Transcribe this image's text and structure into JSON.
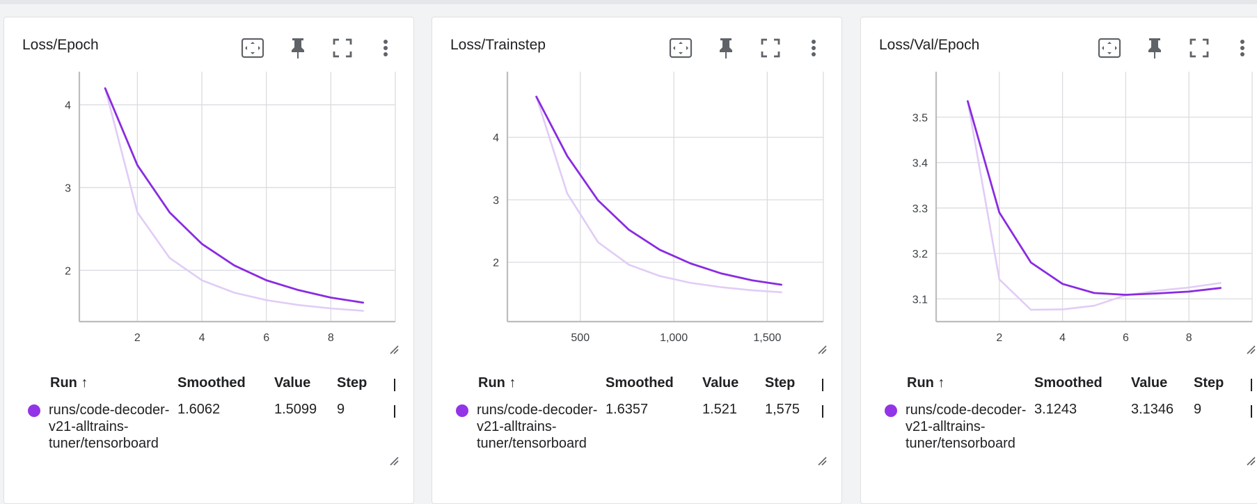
{
  "colors": {
    "smoothed": "#8a2be2",
    "raw": "#e1ccf6",
    "dot": "#9334e6",
    "grid": "#dadce0",
    "axis": "#bdbdbd"
  },
  "icons": [
    "fit-to-domain-icon",
    "pin-icon",
    "fullscreen-icon",
    "more-vert-icon",
    "resize-handle-icon"
  ],
  "table_headers": {
    "run": "Run ↑",
    "smoothed": "Smoothed",
    "value": "Value",
    "step": "Step"
  },
  "run_name": "runs/code-decoder-v21-alltrains-tuner/tensorboard",
  "cards": [
    {
      "title": "Loss/Epoch",
      "row": {
        "smoothed": "1.6062",
        "value": "1.5099",
        "step": "9"
      },
      "chart_data": {
        "type": "line",
        "xlim": [
          0.2,
          10
        ],
        "ylim": [
          1.38,
          4.4
        ],
        "x_ticks": [
          2,
          4,
          6,
          8
        ],
        "x_tick_labels": [
          "2",
          "4",
          "6",
          "8"
        ],
        "y_ticks": [
          2,
          3,
          4
        ],
        "y_tick_labels": [
          "2",
          "3",
          "4"
        ],
        "grid": true,
        "series": [
          {
            "x": [
              1,
              2,
              3,
              4,
              5,
              6,
              7,
              8,
              9
            ],
            "y": [
              4.2,
              2.7,
              2.15,
              1.88,
              1.73,
              1.64,
              1.58,
              1.54,
              1.51
            ]
          },
          {
            "x": [
              1,
              2,
              3,
              4,
              5,
              6,
              7,
              8,
              9
            ],
            "y": [
              4.2,
              3.27,
              2.7,
              2.32,
              2.06,
              1.88,
              1.76,
              1.67,
              1.61
            ]
          }
        ]
      }
    },
    {
      "title": "Loss/Trainstep",
      "row": {
        "smoothed": "1.6357",
        "value": "1.521",
        "step": "1,575"
      },
      "chart_data": {
        "type": "line",
        "xlim": [
          110,
          1800
        ],
        "ylim": [
          1.05,
          5.05
        ],
        "x_ticks": [
          500,
          1000,
          1500
        ],
        "x_tick_labels": [
          "500",
          "1,000",
          "1,500"
        ],
        "y_ticks": [
          2,
          3,
          4
        ],
        "y_tick_labels": [
          "2",
          "3",
          "4"
        ],
        "grid": true,
        "series": [
          {
            "x": [
              265,
              430,
              595,
              760,
              925,
              1090,
              1255,
              1420,
              1575
            ],
            "y": [
              4.65,
              3.1,
              2.32,
              1.96,
              1.78,
              1.67,
              1.6,
              1.55,
              1.52
            ]
          },
          {
            "x": [
              265,
              430,
              595,
              760,
              925,
              1090,
              1255,
              1420,
              1575
            ],
            "y": [
              4.65,
              3.7,
              2.99,
              2.52,
              2.2,
              1.98,
              1.82,
              1.71,
              1.64
            ]
          }
        ]
      }
    },
    {
      "title": "Loss/Val/Epoch",
      "row": {
        "smoothed": "3.1243",
        "value": "3.1346",
        "step": "9"
      },
      "chart_data": {
        "type": "line",
        "xlim": [
          0.0,
          10
        ],
        "ylim": [
          3.05,
          3.6
        ],
        "x_ticks": [
          2,
          4,
          6,
          8
        ],
        "x_tick_labels": [
          "2",
          "4",
          "6",
          "8"
        ],
        "y_ticks": [
          3.1,
          3.2,
          3.3,
          3.4,
          3.5
        ],
        "y_tick_labels": [
          "3.1",
          "3.2",
          "3.3",
          "3.4",
          "3.5"
        ],
        "grid": true,
        "series": [
          {
            "x": [
              1,
              2,
              3,
              4,
              5,
              6,
              7,
              8,
              9
            ],
            "y": [
              3.535,
              3.143,
              3.076,
              3.077,
              3.085,
              3.108,
              3.118,
              3.125,
              3.135
            ]
          },
          {
            "x": [
              1,
              2,
              3,
              4,
              5,
              6,
              7,
              8,
              9
            ],
            "y": [
              3.535,
              3.29,
              3.18,
              3.133,
              3.113,
              3.109,
              3.112,
              3.116,
              3.124
            ]
          }
        ]
      }
    }
  ]
}
